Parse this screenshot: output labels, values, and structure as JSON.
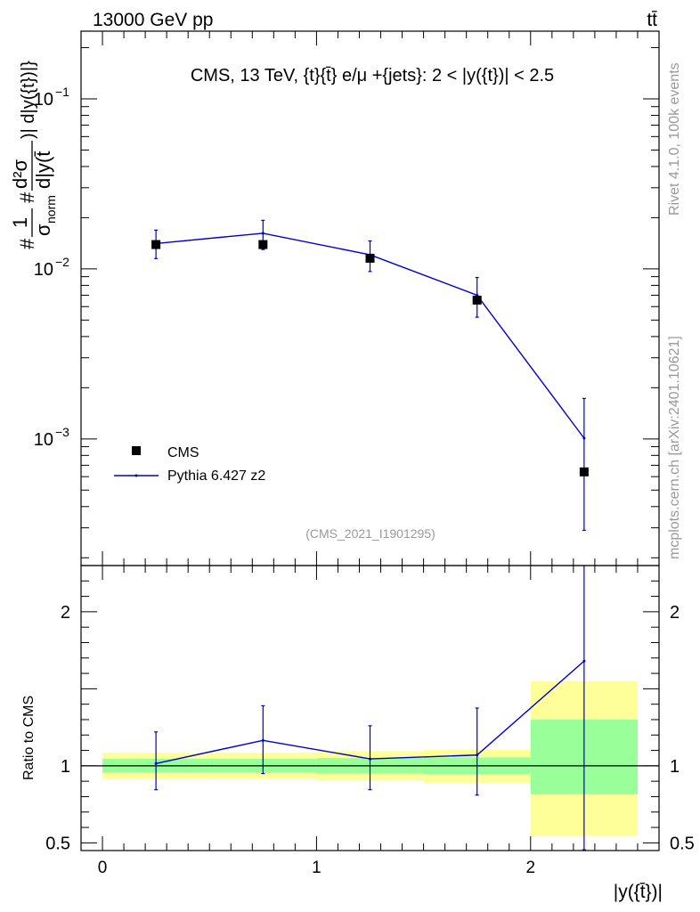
{
  "header": {
    "energy_label": "13000 GeV pp",
    "process_label": "tt̄"
  },
  "side_labels": {
    "rivet": "Rivet 4.1.0,  100k events",
    "mcplots": "mcplots.cern.ch [arXiv:2401.10621]"
  },
  "chart_data": {
    "type": "scatter",
    "title": "CMS, 13 TeV, {t}{t̄} e/μ +{jets}: 2 < |y({t})| < 2.5",
    "analysis_tag": "(CMS_2021_I1901295)",
    "xlabel": "|y({t̄})|",
    "ylabel": "#1/σnorm #d²σ/d|y(t̄)| d|y({t})|",
    "ylabel_parts": {
      "hash": "#",
      "one": "1",
      "sigma_norm": "σ",
      "norm_sub": "norm",
      "num": "d²σ",
      "den": "d|y(t̄",
      "tail": ")| d|y({t})|}"
    },
    "xlim": [
      -0.1,
      2.6
    ],
    "ylim": [
      0.00018,
      0.25
    ],
    "yscale": "log",
    "x_ticks": [
      {
        "value": 0,
        "label": "0"
      },
      {
        "value": 1,
        "label": "1"
      },
      {
        "value": 2,
        "label": "2"
      }
    ],
    "y_major_ticks": [
      {
        "value": 0.1,
        "base": "10",
        "exp": "−1"
      },
      {
        "value": 0.01,
        "base": "10",
        "exp": "−2"
      },
      {
        "value": 0.001,
        "base": "10",
        "exp": "−3"
      }
    ],
    "legend": {
      "position": "lower-left",
      "entries": [
        {
          "name": "CMS",
          "marker": "square",
          "color": "#000000"
        },
        {
          "name": "Pythia 6.427 z2",
          "marker": "line",
          "color": "#0000cc"
        }
      ]
    },
    "bins": [
      {
        "lo": 0.0,
        "hi": 0.5
      },
      {
        "lo": 0.5,
        "hi": 1.0
      },
      {
        "lo": 1.0,
        "hi": 1.5
      },
      {
        "lo": 1.5,
        "hi": 2.0
      },
      {
        "lo": 2.0,
        "hi": 2.5
      }
    ],
    "series": [
      {
        "name": "CMS",
        "color": "#000000",
        "x": [
          0.25,
          0.75,
          1.25,
          1.75,
          2.25
        ],
        "y": [
          0.0139,
          0.0139,
          0.01155,
          0.00655,
          0.00064
        ]
      },
      {
        "name": "Pythia 6.427 z2",
        "color": "#0000cc",
        "x": [
          0.25,
          0.75,
          1.25,
          1.75,
          2.25
        ],
        "y": [
          0.0141,
          0.0162,
          0.0121,
          0.007,
          0.00101
        ],
        "y_err_lo": [
          0.0115,
          0.013,
          0.00965,
          0.0052,
          0.00029
        ],
        "y_err_hi": [
          0.0169,
          0.0193,
          0.0146,
          0.0089,
          0.00173
        ]
      }
    ],
    "ratio": {
      "ylabel": "Ratio to CMS",
      "ylim": [
        0.45,
        2.3
      ],
      "y_ticks": [
        {
          "value": 0.5,
          "label": "0.5"
        },
        {
          "value": 1,
          "label": "1"
        },
        {
          "value": 2,
          "label": "2"
        }
      ],
      "band_inner": {
        "color": "#99ff99",
        "lo": [
          0.955,
          0.955,
          0.95,
          0.945,
          0.815
        ],
        "hi": [
          1.045,
          1.045,
          1.05,
          1.055,
          1.3
        ]
      },
      "band_outer": {
        "color": "#ffff99",
        "lo": [
          0.915,
          0.915,
          0.905,
          0.89,
          0.545
        ],
        "hi": [
          1.085,
          1.085,
          1.095,
          1.105,
          1.55
        ]
      },
      "mc": {
        "x": [
          0.25,
          0.75,
          1.25,
          1.75,
          2.25
        ],
        "y": [
          1.015,
          1.165,
          1.045,
          1.07,
          1.68
        ],
        "err_lo": [
          0.845,
          0.95,
          0.845,
          0.81,
          0.455
        ],
        "err_hi": [
          1.22,
          1.39,
          1.26,
          1.375,
          2.3
        ]
      }
    }
  }
}
